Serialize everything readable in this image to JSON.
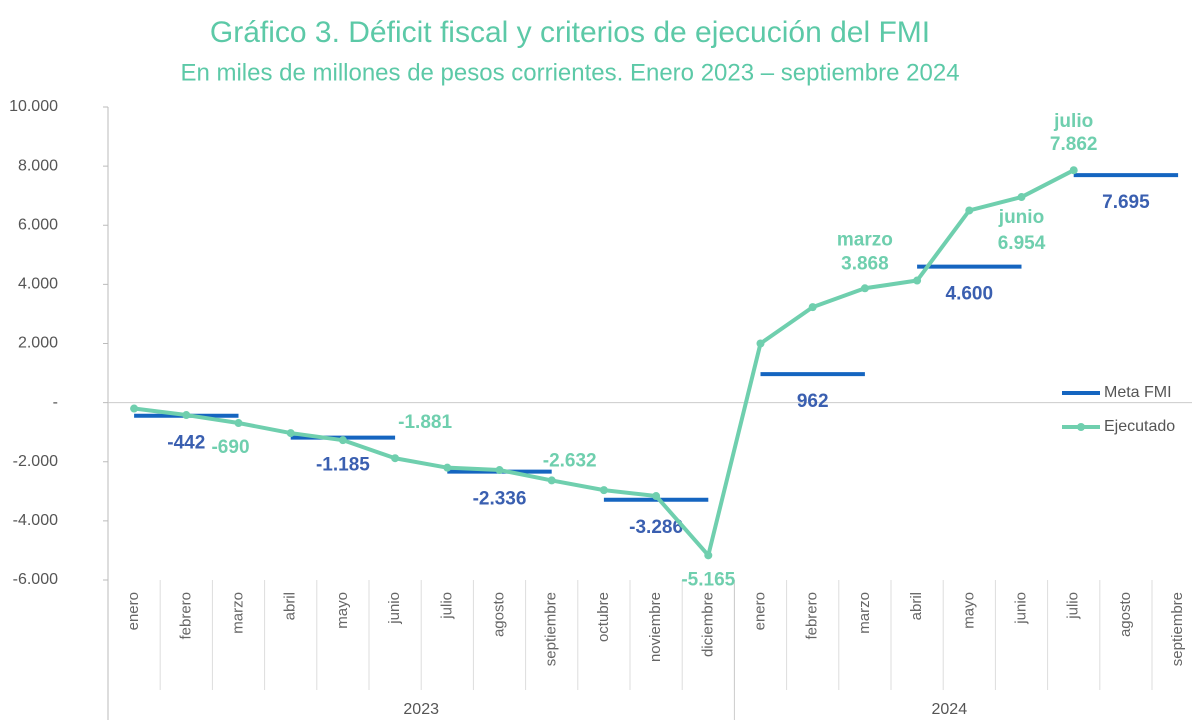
{
  "chart_data": {
    "type": "line",
    "title": "Gráfico 3. Déficit fiscal y criterios de ejecución del FMI",
    "subtitle": "En miles de millones de pesos corrientes. Enero 2023 – septiembre 2024",
    "categories": [
      "enero",
      "febrero",
      "marzo",
      "abril",
      "mayo",
      "junio",
      "julio",
      "agosto",
      "septiembre",
      "octubre",
      "noviembre",
      "diciembre",
      "enero",
      "febrero",
      "marzo",
      "abril",
      "mayo",
      "junio",
      "julio",
      "agosto",
      "septiembre"
    ],
    "groups": [
      {
        "name": "2023",
        "size": 12
      },
      {
        "name": "2024",
        "size": 9
      }
    ],
    "ylim": [
      -6000,
      10000
    ],
    "yticks": [
      {
        "value": -6000,
        "label": "-6.000"
      },
      {
        "value": -4000,
        "label": "-4.000"
      },
      {
        "value": -2000,
        "label": "-2.000"
      },
      {
        "value": 0,
        "label": "-"
      },
      {
        "value": 2000,
        "label": "2.000"
      },
      {
        "value": 4000,
        "label": "4.000"
      },
      {
        "value": 6000,
        "label": "6.000"
      },
      {
        "value": 8000,
        "label": "8.000"
      },
      {
        "value": 10000,
        "label": "10.000"
      }
    ],
    "legend": "right",
    "series": [
      {
        "name": "Meta FMI",
        "color": "#1565c0",
        "label_color": "#3a5fb0",
        "style": "step",
        "values": [
          null,
          -442,
          null,
          null,
          -1185,
          null,
          null,
          -2336,
          null,
          null,
          -3286,
          null,
          null,
          962,
          null,
          null,
          4600,
          null,
          null,
          7695,
          null
        ],
        "value_labels": [
          null,
          "-442",
          null,
          null,
          "-1.185",
          null,
          null,
          "-2.336",
          null,
          null,
          "-3.286",
          null,
          null,
          "962",
          null,
          null,
          "4.600",
          null,
          null,
          "7.695",
          null
        ]
      },
      {
        "name": "Ejecutado",
        "color": "#6fcfae",
        "label_color": "#6fcfae",
        "style": "line",
        "values": [
          -200,
          -420,
          -690,
          -1030,
          -1270,
          -1881,
          -2200,
          -2280,
          -2632,
          -2960,
          -3160,
          -5165,
          2000,
          3230,
          3868,
          4130,
          6500,
          6954,
          7862,
          null,
          null
        ],
        "value_labels": [
          null,
          null,
          "-690",
          null,
          null,
          "-1.881",
          null,
          null,
          "-2.632",
          null,
          null,
          "-5.165",
          null,
          null,
          "3.868",
          null,
          null,
          "6.954",
          "7.862",
          null,
          null
        ]
      }
    ]
  }
}
